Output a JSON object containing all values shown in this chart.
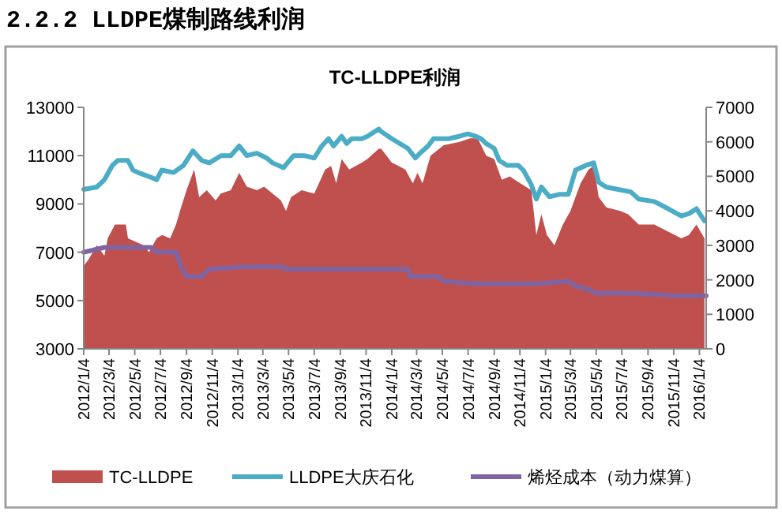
{
  "chart_data": {
    "type": "area",
    "title": "2.2.2 LLDPE煤制路线利润",
    "subtitle": "TC-LLDPE利润",
    "xlim": [
      "2012-01-04",
      "2016-01-20"
    ],
    "xticks": [
      {
        "value": "2012-01-04",
        "label": "2012/1/4"
      },
      {
        "value": "2012-03-04",
        "label": "2012/3/4"
      },
      {
        "value": "2012-05-04",
        "label": "2012/5/4"
      },
      {
        "value": "2012-07-04",
        "label": "2012/7/4"
      },
      {
        "value": "2012-09-04",
        "label": "2012/9/4"
      },
      {
        "value": "2012-11-04",
        "label": "2012/11/4"
      },
      {
        "value": "2013-01-04",
        "label": "2013/1/4"
      },
      {
        "value": "2013-03-04",
        "label": "2013/3/4"
      },
      {
        "value": "2013-05-04",
        "label": "2013/5/4"
      },
      {
        "value": "2013-07-04",
        "label": "2013/7/4"
      },
      {
        "value": "2013-09-04",
        "label": "2013/9/4"
      },
      {
        "value": "2013-11-04",
        "label": "2013/11/4"
      },
      {
        "value": "2014-01-04",
        "label": "2014/1/4"
      },
      {
        "value": "2014-03-04",
        "label": "2014/3/4"
      },
      {
        "value": "2014-05-04",
        "label": "2014/5/4"
      },
      {
        "value": "2014-07-04",
        "label": "2014/7/4"
      },
      {
        "value": "2014-09-04",
        "label": "2014/9/4"
      },
      {
        "value": "2014-11-04",
        "label": "2014/11/4"
      },
      {
        "value": "2015-01-04",
        "label": "2015/1/4"
      },
      {
        "value": "2015-03-04",
        "label": "2015/3/4"
      },
      {
        "value": "2015-05-04",
        "label": "2015/5/4"
      },
      {
        "value": "2015-07-04",
        "label": "2015/7/4"
      },
      {
        "value": "2015-09-04",
        "label": "2015/9/4"
      },
      {
        "value": "2015-11-04",
        "label": "2015/11/4"
      },
      {
        "value": "2016-01-04",
        "label": "2016/1/4"
      }
    ],
    "ylim": [
      3000,
      13000
    ],
    "yticks": [
      3000,
      5000,
      7000,
      9000,
      11000,
      13000
    ],
    "y2lim": [
      0,
      7000
    ],
    "y2ticks": [
      0,
      1000,
      2000,
      3000,
      4000,
      5000,
      6000,
      7000
    ],
    "grid": false,
    "legend": "bottom",
    "series": [
      {
        "name": "TC-LLDPE",
        "axis": "y2",
        "color": "#c0504d",
        "x": [
          "2012-01-04",
          "2012-01-16",
          "2012-02-04",
          "2012-02-22",
          "2012-03-01",
          "2012-03-18",
          "2012-04-13",
          "2012-04-18",
          "2012-05-07",
          "2012-05-25",
          "2012-06-07",
          "2012-06-25",
          "2012-07-08",
          "2012-07-27",
          "2012-08-10",
          "2012-08-22",
          "2012-09-04",
          "2012-09-22",
          "2012-10-04",
          "2012-10-22",
          "2012-11-12",
          "2012-11-24",
          "2012-12-18",
          "2013-01-07",
          "2013-01-25",
          "2013-02-18",
          "2013-03-07",
          "2013-03-27",
          "2013-04-16",
          "2013-04-28",
          "2013-05-10",
          "2013-06-04",
          "2013-07-04",
          "2013-07-30",
          "2013-08-13",
          "2013-08-25",
          "2013-09-07",
          "2013-09-25",
          "2013-10-25",
          "2013-11-07",
          "2013-12-04",
          "2013-12-10",
          "2014-01-04",
          "2014-02-05",
          "2014-02-23",
          "2014-03-06",
          "2014-03-18",
          "2014-04-06",
          "2014-05-07",
          "2014-06-14",
          "2014-07-09",
          "2014-07-27",
          "2014-08-16",
          "2014-09-04",
          "2014-09-22",
          "2014-10-11",
          "2014-11-05",
          "2014-12-01",
          "2014-12-13",
          "2014-12-25",
          "2015-01-07",
          "2015-01-25",
          "2015-02-14",
          "2015-03-04",
          "2015-03-28",
          "2015-04-16",
          "2015-04-28",
          "2015-05-10",
          "2015-05-28",
          "2015-06-30",
          "2015-07-19",
          "2015-08-13",
          "2015-09-19",
          "2015-10-22",
          "2015-11-22",
          "2015-12-10",
          "2015-12-28",
          "2016-01-16"
        ],
        "values": [
          2400,
          2600,
          3000,
          2700,
          3200,
          3600,
          3600,
          3200,
          3100,
          3000,
          2800,
          3200,
          3300,
          3200,
          3600,
          4100,
          4600,
          5200,
          4400,
          4600,
          4300,
          4500,
          4600,
          5100,
          4700,
          4600,
          4700,
          4500,
          4300,
          4000,
          4400,
          4600,
          4500,
          5200,
          5300,
          4800,
          5500,
          5200,
          5400,
          5500,
          5800,
          5800,
          5400,
          5200,
          4800,
          5100,
          4800,
          5600,
          5900,
          6000,
          6100,
          6100,
          5600,
          5500,
          4900,
          5000,
          4800,
          4600,
          3300,
          3900,
          3300,
          3000,
          3600,
          4000,
          4800,
          5200,
          5300,
          4400,
          4100,
          4000,
          3900,
          3600,
          3600,
          3400,
          3200,
          3300,
          3600,
          3200
        ]
      },
      {
        "name": "LLDPE大庆石化",
        "type": "line",
        "axis": "y",
        "color": "#4bacc6",
        "x": [
          "2012-01-04",
          "2012-02-04",
          "2012-02-22",
          "2012-03-12",
          "2012-03-25",
          "2012-04-18",
          "2012-04-30",
          "2012-05-12",
          "2012-06-12",
          "2012-06-25",
          "2012-07-07",
          "2012-08-04",
          "2012-08-28",
          "2012-09-19",
          "2012-10-10",
          "2012-10-28",
          "2012-11-25",
          "2012-12-18",
          "2013-01-07",
          "2013-01-25",
          "2013-02-18",
          "2013-03-13",
          "2013-03-27",
          "2013-04-22",
          "2013-05-16",
          "2013-06-10",
          "2013-07-04",
          "2013-07-22",
          "2013-08-07",
          "2013-08-19",
          "2013-09-07",
          "2013-09-19",
          "2013-10-01",
          "2013-10-25",
          "2013-11-07",
          "2013-12-04",
          "2013-12-10",
          "2014-01-04",
          "2014-02-11",
          "2014-03-01",
          "2014-03-12",
          "2014-03-31",
          "2014-04-13",
          "2014-05-19",
          "2014-06-13",
          "2014-07-03",
          "2014-07-22",
          "2014-08-04",
          "2014-08-16",
          "2014-09-04",
          "2014-09-16",
          "2014-10-04",
          "2014-10-31",
          "2014-11-12",
          "2014-12-01",
          "2014-12-13",
          "2014-12-25",
          "2015-01-13",
          "2015-02-07",
          "2015-02-27",
          "2015-03-16",
          "2015-04-10",
          "2015-04-28",
          "2015-05-10",
          "2015-05-28",
          "2015-06-25",
          "2015-07-25",
          "2015-08-13",
          "2015-09-19",
          "2015-10-22",
          "2015-11-22",
          "2015-12-10",
          "2015-12-28",
          "2016-01-16"
        ],
        "values": [
          9600,
          9700,
          10000,
          10600,
          10800,
          10800,
          10400,
          10300,
          10100,
          10000,
          10400,
          10300,
          10600,
          11200,
          10800,
          10700,
          11000,
          11000,
          11400,
          11000,
          11100,
          10900,
          10700,
          10500,
          11000,
          11000,
          10900,
          11400,
          11700,
          11400,
          11800,
          11500,
          11700,
          11700,
          11800,
          12100,
          12000,
          11700,
          11300,
          10900,
          11100,
          11400,
          11700,
          11700,
          11800,
          11900,
          11800,
          11700,
          11500,
          11300,
          10800,
          10600,
          10600,
          10400,
          9800,
          9200,
          9700,
          9300,
          9400,
          9400,
          10400,
          10600,
          10700,
          9900,
          9700,
          9600,
          9500,
          9200,
          9100,
          8800,
          8500,
          8600,
          8800,
          8300
        ]
      },
      {
        "name": "烯烃成本（动力煤算）",
        "type": "line",
        "axis": "y",
        "color": "#8064a2",
        "x": [
          "2012-01-04",
          "2012-02-22",
          "2012-06-12",
          "2012-06-25",
          "2012-08-10",
          "2012-08-22",
          "2012-09-04",
          "2012-10-10",
          "2012-10-28",
          "2013-01-25",
          "2013-04-22",
          "2013-04-28",
          "2013-07-30",
          "2013-08-13",
          "2013-12-04",
          "2014-02-11",
          "2014-02-17",
          "2014-04-25",
          "2014-05-07",
          "2014-07-15",
          "2014-07-27",
          "2014-11-24",
          "2014-12-18",
          "2015-02-27",
          "2015-03-16",
          "2015-04-10",
          "2015-05-04",
          "2015-08-01",
          "2015-11-10",
          "2016-01-20"
        ],
        "values": [
          7000,
          7200,
          7200,
          7000,
          7000,
          6400,
          6000,
          6000,
          6300,
          6400,
          6400,
          6300,
          6300,
          6300,
          6300,
          6300,
          6000,
          6000,
          5800,
          5700,
          5700,
          5700,
          5700,
          5800,
          5600,
          5500,
          5300,
          5300,
          5200,
          5200
        ]
      }
    ]
  }
}
